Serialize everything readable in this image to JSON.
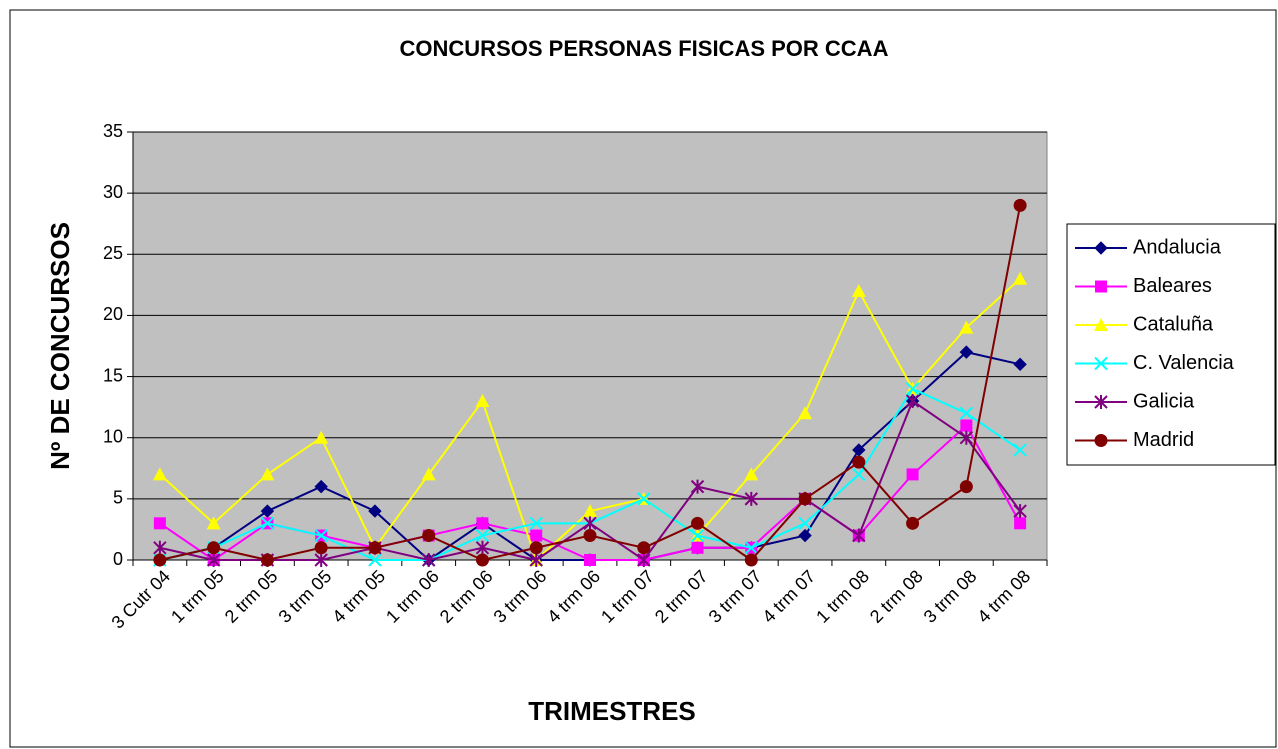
{
  "chart_data": {
    "type": "line",
    "title": "CONCURSOS PERSONAS FISICAS POR CCAA",
    "x_label": "TRIMESTRES",
    "y_label": "Nº DE CONCURSOS",
    "categories": [
      "3 Cutr 04",
      "1 trm 05",
      "2 trm 05",
      "3 trm 05",
      "4 trm 05",
      "1 trm 06",
      "2 trm 06",
      "3 trm 06",
      "4 trm 06",
      "1 trm 07",
      "2 trm 07",
      "3 trm 07",
      "4 trm 07",
      "1 trm 08",
      "2 trm 08",
      "3 trm 08",
      "4 trm 08"
    ],
    "series": [
      {
        "name": "Andalucia",
        "color": "#000080",
        "marker": "diamond",
        "values": [
          0,
          1,
          4,
          6,
          4,
          0,
          3,
          0,
          0,
          0,
          1,
          1,
          2,
          9,
          13,
          17,
          16
        ]
      },
      {
        "name": "Baleares",
        "color": "#ff00ff",
        "marker": "square",
        "values": [
          3,
          0,
          3,
          2,
          1,
          2,
          3,
          2,
          0,
          0,
          1,
          1,
          5,
          2,
          7,
          11,
          3
        ]
      },
      {
        "name": "Cataluña",
        "color": "#ffff00",
        "marker": "triangle",
        "values": [
          7,
          3,
          7,
          10,
          1,
          7,
          13,
          0,
          4,
          5,
          2,
          7,
          12,
          22,
          14,
          19,
          23
        ]
      },
      {
        "name": "C. Valencia",
        "color": "#00ffff",
        "marker": "x",
        "values": [
          0,
          1,
          3,
          2,
          0,
          0,
          2,
          3,
          3,
          5,
          2,
          1,
          3,
          7,
          14,
          12,
          9
        ]
      },
      {
        "name": "Galicia",
        "color": "#800080",
        "marker": "star",
        "values": [
          1,
          0,
          0,
          0,
          1,
          0,
          1,
          0,
          3,
          0,
          6,
          5,
          5,
          2,
          13,
          10,
          4
        ]
      },
      {
        "name": "Madrid",
        "color": "#800000",
        "marker": "circle",
        "values": [
          0,
          1,
          0,
          1,
          1,
          2,
          0,
          1,
          2,
          1,
          3,
          0,
          5,
          8,
          3,
          6,
          29
        ]
      }
    ],
    "ylim": [
      0,
      35
    ],
    "yticks": [
      0,
      5,
      10,
      15,
      20,
      25,
      30,
      35
    ],
    "grid": true,
    "legend": "right"
  }
}
